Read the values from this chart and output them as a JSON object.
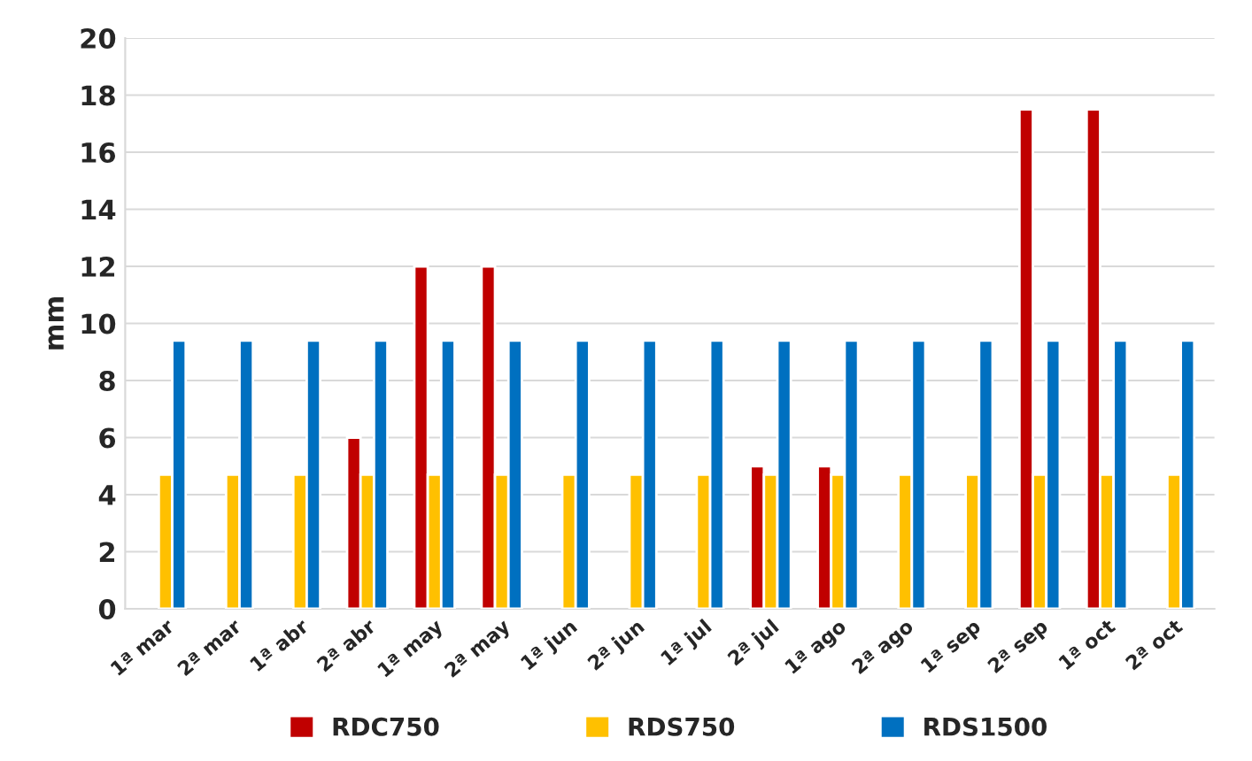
{
  "chart_data": {
    "type": "bar",
    "ylabel": "mm",
    "categories": [
      "1ª mar",
      "2ª mar",
      "1ª abr",
      "2ª abr",
      "1ª may",
      "2ª may",
      "1ª jun",
      "2ª jun",
      "1ª jul",
      "2ª jul",
      "1ª ago",
      "2ª ago",
      "1ª sep",
      "2ª sep",
      "1ª oct",
      "2ª oct"
    ],
    "series": [
      {
        "name": "RDC750",
        "color": "#c00000",
        "values": [
          null,
          null,
          null,
          6,
          12,
          12,
          null,
          null,
          null,
          5,
          5,
          null,
          null,
          17.5,
          17.5,
          null
        ]
      },
      {
        "name": "RDS750",
        "color": "#ffc000",
        "values": [
          4.7,
          4.7,
          4.7,
          4.7,
          4.7,
          4.7,
          4.7,
          4.7,
          4.7,
          4.7,
          4.7,
          4.7,
          4.7,
          4.7,
          4.7,
          4.7
        ]
      },
      {
        "name": "RDS1500",
        "color": "#0070c0",
        "values": [
          9.4,
          9.4,
          9.4,
          9.4,
          9.4,
          9.4,
          9.4,
          9.4,
          9.4,
          9.4,
          9.4,
          9.4,
          9.4,
          9.4,
          9.4,
          9.4
        ]
      }
    ],
    "ylim": [
      0,
      20
    ],
    "yticks": [
      0,
      2,
      4,
      6,
      8,
      10,
      12,
      14,
      16,
      18,
      20
    ],
    "grid": "y",
    "legend": "bottom"
  }
}
